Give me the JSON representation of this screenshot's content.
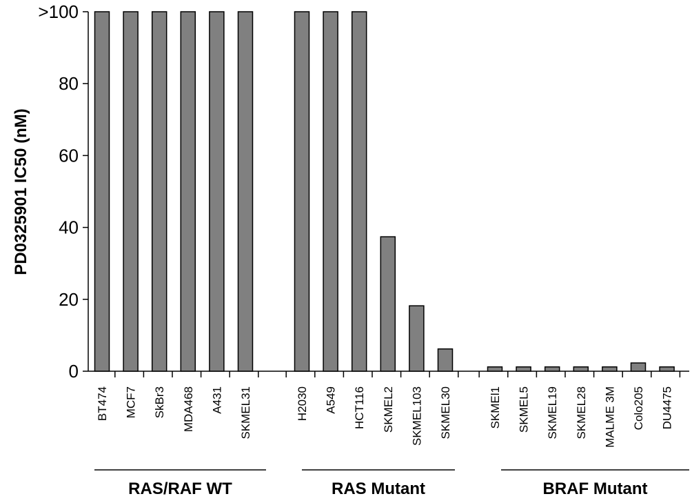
{
  "chart_data": {
    "type": "bar",
    "title": "",
    "xlabel": "",
    "ylabel": "PD0325901 IC50 (nM)",
    "ylim": [
      0,
      100
    ],
    "yticks": [
      {
        "value": 0,
        "label": "0"
      },
      {
        "value": 20,
        "label": "20"
      },
      {
        "value": 40,
        "label": "40"
      },
      {
        "value": 60,
        "label": "60"
      },
      {
        "value": 80,
        "label": "80"
      },
      {
        "value": 100,
        "label": ">100"
      }
    ],
    "grid": false,
    "legend": "none",
    "bar_color": "#808080",
    "groups": [
      {
        "name": "RAS/RAF WT",
        "categories": [
          "BT474",
          "MCF7",
          "SkBr3",
          "MDA468",
          "A431",
          "SKMEL31"
        ],
        "values": [
          100,
          100,
          100,
          100,
          100,
          100
        ]
      },
      {
        "name": "RAS Mutant",
        "categories": [
          "H2030",
          "A549",
          "HCT116",
          "SKMEL2",
          "SKMEL103",
          "SKMEL30"
        ],
        "values": [
          100,
          100,
          100,
          37.4,
          18.2,
          6.2
        ]
      },
      {
        "name": "BRAF Mutant",
        "categories": [
          "SKMEl1",
          "SKMEL5",
          "SKMEL19",
          "SKMEL28",
          "MALME 3M",
          "Colo205",
          "DU4475"
        ],
        "values": [
          1.2,
          1.2,
          1.2,
          1.2,
          1.2,
          2.3,
          1.2
        ]
      }
    ]
  }
}
